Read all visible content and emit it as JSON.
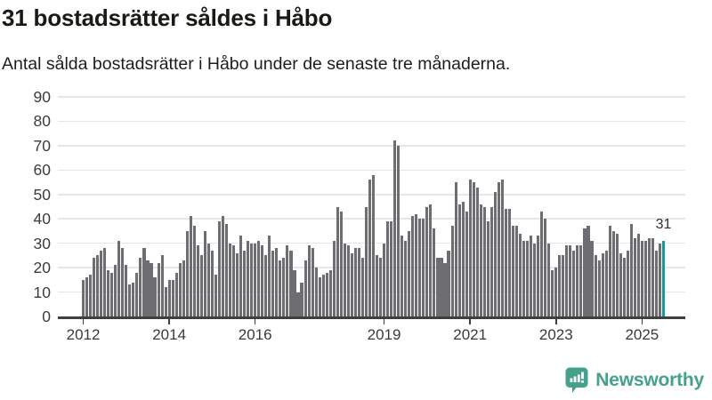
{
  "header": {
    "title": "31 bostadsrätter såldes i Håbo",
    "subtitle": "Antal sålda bostadsrätter i Håbo under de senaste tre månaderna."
  },
  "chart_data": {
    "type": "bar",
    "title": "31 bostadsrätter såldes i Håbo",
    "subtitle": "Antal sålda bostadsrätter i Håbo under de senaste tre månaderna.",
    "unit": "sålda bostadsrätter per månad",
    "x_start": "2012",
    "x_end": "2025",
    "values": [
      15,
      16,
      17,
      24,
      25,
      27,
      28,
      19,
      18,
      21,
      31,
      28,
      21,
      13,
      14,
      18,
      24,
      28,
      23,
      22,
      16,
      22,
      25,
      12,
      15,
      15,
      18,
      22,
      23,
      35,
      41,
      37,
      29,
      25,
      35,
      30,
      27,
      17,
      39,
      41,
      38,
      30,
      29,
      26,
      33,
      27,
      31,
      30,
      30,
      31,
      29,
      25,
      33,
      27,
      28,
      23,
      24,
      29,
      27,
      19,
      10,
      14,
      23,
      29,
      28,
      20,
      16,
      17,
      18,
      19,
      31,
      45,
      43,
      30,
      29,
      26,
      28,
      28,
      24,
      45,
      56,
      58,
      25,
      24,
      30,
      39,
      39,
      72,
      70,
      33,
      31,
      35,
      41,
      42,
      40,
      40,
      45,
      46,
      36,
      24,
      24,
      22,
      27,
      37,
      55,
      46,
      47,
      43,
      56,
      55,
      53,
      46,
      45,
      39,
      45,
      51,
      55,
      56,
      44,
      44,
      37,
      37,
      34,
      31,
      31,
      33,
      30,
      33,
      43,
      40,
      30,
      19,
      20,
      25,
      25,
      29,
      29,
      27,
      29,
      29,
      36,
      37,
      31,
      25,
      23,
      26,
      27,
      37,
      35,
      34,
      26,
      24,
      27,
      38,
      32,
      34,
      31,
      31,
      32,
      32,
      27,
      30,
      31
    ],
    "highlight_last_bar": true,
    "last_value_label": "31",
    "y_ticks": [
      0,
      10,
      20,
      30,
      40,
      50,
      60,
      70,
      80,
      90
    ],
    "ylim": [
      0,
      93
    ],
    "x_tick_labels": [
      "2012",
      "2014",
      "2016",
      "2019",
      "2021",
      "2023",
      "2025"
    ],
    "x_tick_month_offsets": [
      0,
      24,
      48,
      84,
      108,
      132,
      156
    ],
    "grid": true,
    "legend": "none",
    "bar_color": "#6e6d72",
    "highlight_color": "#17999b",
    "axis_color": "#3f3f3f",
    "grid_color": "#e6e6e6"
  },
  "footer": {
    "brand": "Newsworthy",
    "brand_color": "#46a18c",
    "logo_icon": "speech-bubble-bar-chart-exclamation"
  }
}
